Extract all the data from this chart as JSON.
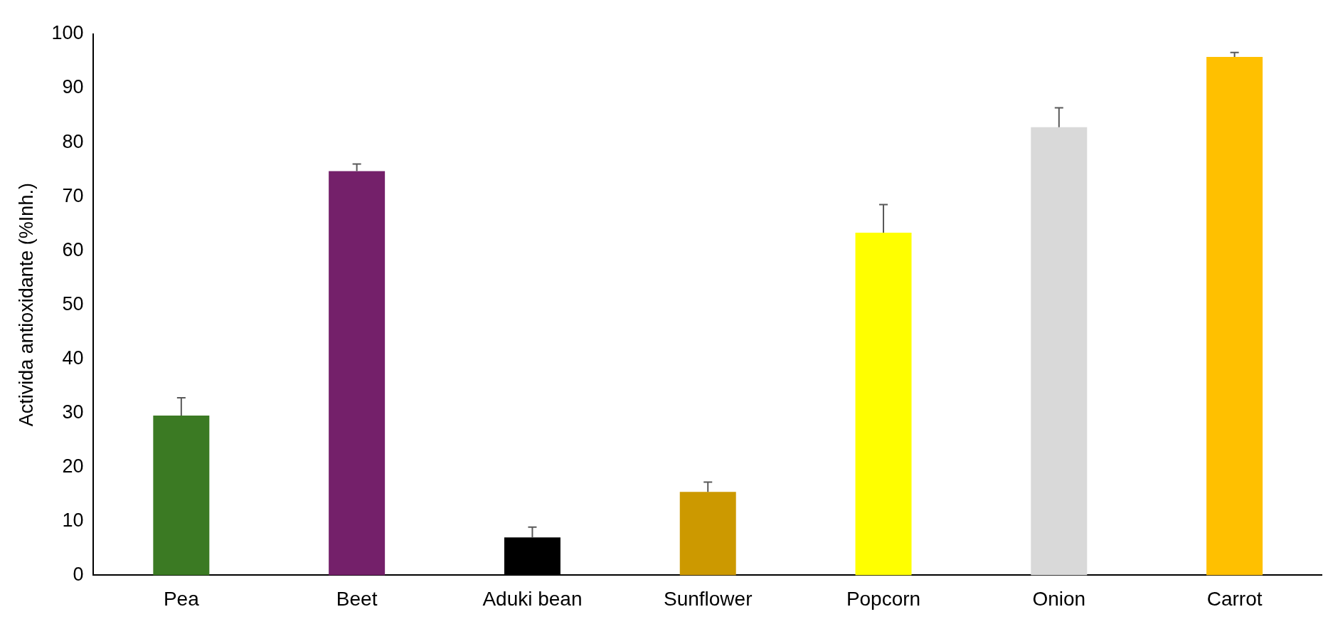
{
  "chart_data": {
    "type": "bar",
    "ylabel": "Activida antioxidante (%Inh.)",
    "categories": [
      "Pea",
      "Beet",
      "Aduki bean",
      "Sunflower",
      "Popcorn",
      "Onion",
      "Carrot"
    ],
    "values": [
      29.5,
      74.7,
      7.0,
      15.4,
      63.3,
      82.8,
      95.8
    ],
    "colors": [
      "#3b7a23",
      "#74206a",
      "#000000",
      "#cc9900",
      "#ffff00",
      "#d9d9d9",
      "#ffc000"
    ],
    "errors": [
      [
        29.5,
        32.8
      ],
      [
        74.7,
        76.0
      ],
      [
        7.0,
        8.9
      ],
      [
        15.4,
        17.2
      ],
      [
        63.3,
        68.5
      ],
      [
        82.8,
        86.4
      ],
      [
        95.8,
        96.6
      ]
    ],
    "ylim": [
      0,
      100
    ],
    "yticks": [
      0,
      10,
      20,
      30,
      40,
      50,
      60,
      70,
      80,
      90,
      100
    ],
    "grid": false,
    "legend": false
  }
}
